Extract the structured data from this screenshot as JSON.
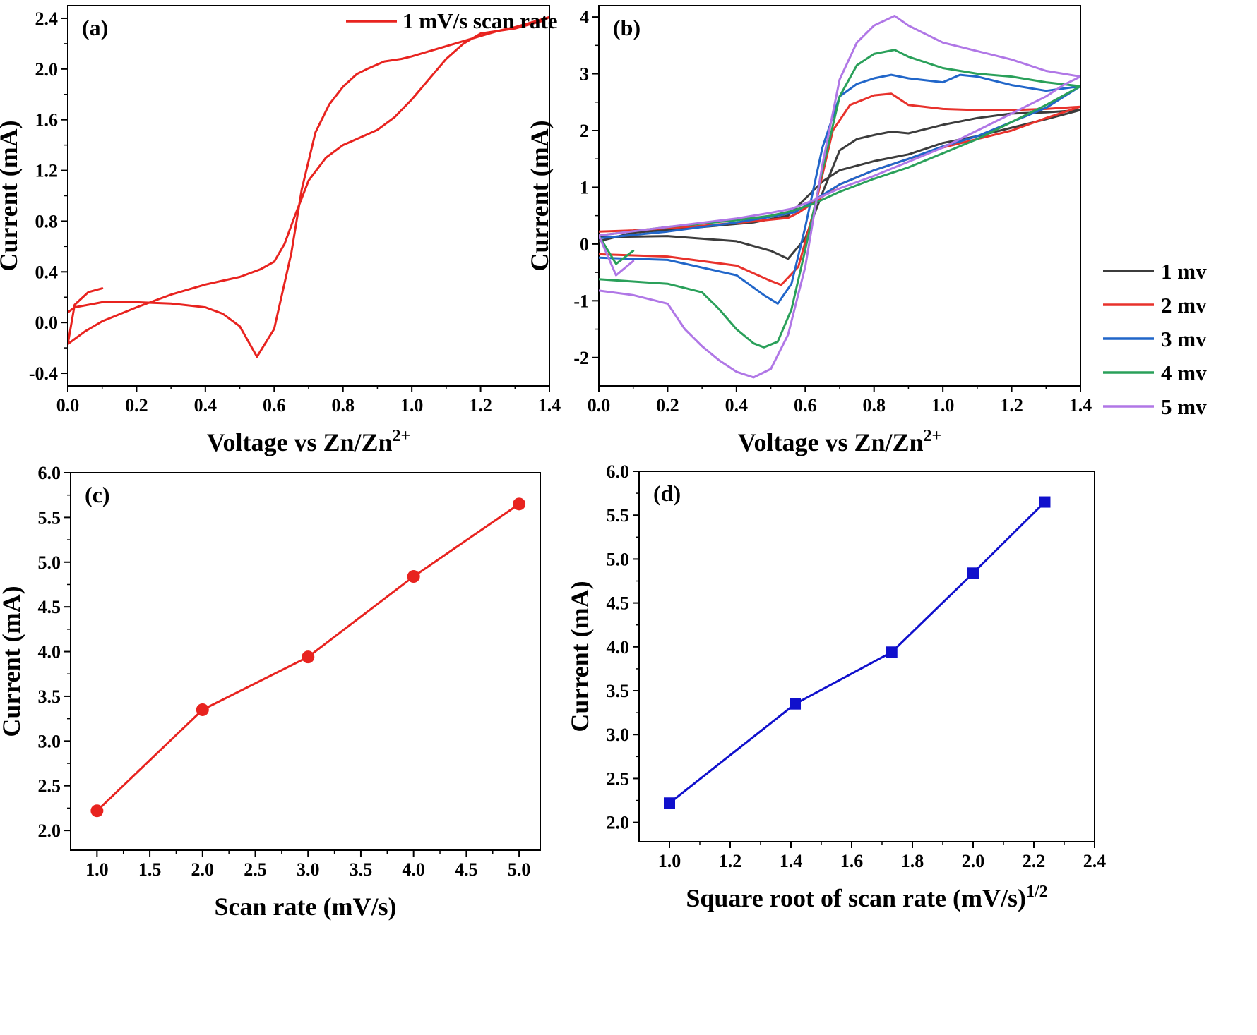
{
  "chart_data": [
    {
      "panel": "(a)",
      "type": "line",
      "xlabel": "Voltage vs Zn/Zn",
      "xlabel_sup": "2+",
      "ylabel": "Current (mA)",
      "xlim": [
        0,
        1.4
      ],
      "ylim": [
        -0.5,
        2.5
      ],
      "xticks": [
        "0.0",
        "0.2",
        "0.4",
        "0.6",
        "0.8",
        "1.0",
        "1.2",
        "1.4"
      ],
      "yticks": [
        "-0.4",
        "0.0",
        "0.4",
        "0.8",
        "1.2",
        "1.6",
        "2.0",
        "2.4"
      ],
      "legend": "top-right",
      "series": [
        {
          "name": "1 mV/s scan rate",
          "color": "#e8231f",
          "x": [
            0.0,
            0.02,
            0.1,
            0.2,
            0.3,
            0.4,
            0.45,
            0.5,
            0.55,
            0.6,
            0.65,
            0.68,
            0.72,
            0.76,
            0.8,
            0.84,
            0.87,
            0.92,
            0.97,
            1.0,
            1.05,
            1.1,
            1.15,
            1.2,
            1.25,
            1.3,
            1.35,
            1.4,
            1.38,
            1.3,
            1.25,
            1.2,
            1.15,
            1.1,
            1.05,
            1.0,
            0.95,
            0.9,
            0.85,
            0.8,
            0.75,
            0.7,
            0.66,
            0.63,
            0.6,
            0.56,
            0.52,
            0.5,
            0.45,
            0.4,
            0.3,
            0.2,
            0.1,
            0.05,
            0.0,
            0.02,
            0.06,
            0.1
          ],
          "y": [
            0.08,
            0.12,
            0.16,
            0.16,
            0.15,
            0.12,
            0.07,
            -0.03,
            -0.27,
            -0.05,
            0.55,
            1.05,
            1.5,
            1.72,
            1.86,
            1.96,
            2.0,
            2.06,
            2.08,
            2.1,
            2.14,
            2.18,
            2.22,
            2.26,
            2.3,
            2.33,
            2.37,
            2.41,
            2.38,
            2.32,
            2.3,
            2.28,
            2.2,
            2.08,
            1.92,
            1.76,
            1.62,
            1.52,
            1.46,
            1.4,
            1.3,
            1.12,
            0.84,
            0.62,
            0.48,
            0.42,
            0.38,
            0.36,
            0.33,
            0.3,
            0.22,
            0.12,
            0.01,
            -0.07,
            -0.17,
            0.14,
            0.24,
            0.27
          ]
        }
      ]
    },
    {
      "panel": "(b)",
      "type": "line",
      "xlabel": "Voltage vs Zn/Zn",
      "xlabel_sup": "2+",
      "ylabel": "Current (mA)",
      "xlim": [
        0,
        1.4
      ],
      "ylim": [
        -2.5,
        4.2
      ],
      "xticks": [
        "0.0",
        "0.2",
        "0.4",
        "0.6",
        "0.8",
        "1.0",
        "1.2",
        "1.4"
      ],
      "yticks": [
        "-2",
        "-1",
        "0",
        "1",
        "2",
        "3",
        "4"
      ],
      "legend": "bottom-right",
      "series": [
        {
          "name": "1 mv",
          "color": "#3c3c3c",
          "x": [
            0.0,
            0.2,
            0.4,
            0.5,
            0.55,
            0.6,
            0.65,
            0.7,
            0.75,
            0.8,
            0.85,
            0.9,
            1.0,
            1.1,
            1.2,
            1.3,
            1.4,
            1.3,
            1.2,
            1.1,
            1.0,
            0.9,
            0.8,
            0.7,
            0.65,
            0.6,
            0.55,
            0.45,
            0.3,
            0.1,
            0.0
          ],
          "y": [
            0.12,
            0.14,
            0.05,
            -0.12,
            -0.26,
            0.1,
            0.9,
            1.65,
            1.85,
            1.92,
            1.98,
            1.95,
            2.1,
            2.22,
            2.3,
            2.32,
            2.36,
            2.2,
            2.05,
            1.9,
            1.78,
            1.58,
            1.46,
            1.3,
            1.1,
            0.8,
            0.5,
            0.38,
            0.3,
            0.2,
            0.05
          ]
        },
        {
          "name": "2 mv",
          "color": "#e8322c",
          "x": [
            0.0,
            0.2,
            0.4,
            0.5,
            0.53,
            0.58,
            0.63,
            0.68,
            0.73,
            0.8,
            0.85,
            0.9,
            1.0,
            1.1,
            1.2,
            1.3,
            1.4,
            1.3,
            1.2,
            1.1,
            1.0,
            0.9,
            0.8,
            0.7,
            0.63,
            0.58,
            0.55,
            0.45,
            0.3,
            0.1,
            0.0
          ],
          "y": [
            -0.18,
            -0.22,
            -0.38,
            -0.65,
            -0.72,
            -0.4,
            0.7,
            2.0,
            2.45,
            2.62,
            2.65,
            2.45,
            2.38,
            2.36,
            2.36,
            2.38,
            2.42,
            2.22,
            2.0,
            1.85,
            1.7,
            1.5,
            1.3,
            1.05,
            0.75,
            0.55,
            0.46,
            0.4,
            0.32,
            0.24,
            0.22
          ]
        },
        {
          "name": "3 mv",
          "color": "#2166c9",
          "x": [
            0.0,
            0.2,
            0.4,
            0.48,
            0.52,
            0.56,
            0.6,
            0.65,
            0.7,
            0.75,
            0.8,
            0.85,
            0.9,
            1.0,
            1.05,
            1.1,
            1.2,
            1.3,
            1.4,
            1.3,
            1.2,
            1.1,
            1.0,
            0.9,
            0.8,
            0.7,
            0.62,
            0.57,
            0.5,
            0.4,
            0.2,
            0.0
          ],
          "y": [
            -0.24,
            -0.28,
            -0.55,
            -0.9,
            -1.05,
            -0.7,
            0.3,
            1.7,
            2.6,
            2.82,
            2.92,
            2.98,
            2.92,
            2.85,
            2.98,
            2.95,
            2.8,
            2.7,
            2.78,
            2.4,
            2.15,
            1.9,
            1.72,
            1.5,
            1.3,
            1.05,
            0.75,
            0.56,
            0.48,
            0.38,
            0.22,
            0.1
          ]
        },
        {
          "name": "4 mv",
          "color": "#2aa05a",
          "x": [
            0.0,
            0.2,
            0.3,
            0.35,
            0.4,
            0.45,
            0.48,
            0.52,
            0.56,
            0.6,
            0.65,
            0.7,
            0.75,
            0.8,
            0.86,
            0.9,
            1.0,
            1.1,
            1.2,
            1.3,
            1.4,
            1.3,
            1.2,
            1.1,
            1.0,
            0.9,
            0.8,
            0.7,
            0.62,
            0.56,
            0.5,
            0.4,
            0.2,
            0.0,
            0.05,
            0.1
          ],
          "y": [
            -0.62,
            -0.7,
            -0.85,
            -1.15,
            -1.5,
            -1.75,
            -1.82,
            -1.72,
            -1.15,
            -0.1,
            1.3,
            2.6,
            3.15,
            3.35,
            3.42,
            3.3,
            3.1,
            3.0,
            2.95,
            2.85,
            2.78,
            2.45,
            2.15,
            1.85,
            1.6,
            1.35,
            1.15,
            0.92,
            0.7,
            0.58,
            0.5,
            0.42,
            0.3,
            0.15,
            -0.35,
            -0.12
          ]
        },
        {
          "name": "5 mv",
          "color": "#b077e6",
          "x": [
            0.0,
            0.1,
            0.2,
            0.25,
            0.3,
            0.35,
            0.4,
            0.45,
            0.5,
            0.55,
            0.6,
            0.65,
            0.7,
            0.75,
            0.8,
            0.86,
            0.9,
            1.0,
            1.1,
            1.2,
            1.3,
            1.4,
            1.35,
            1.3,
            1.2,
            1.1,
            1.0,
            0.9,
            0.8,
            0.7,
            0.62,
            0.56,
            0.5,
            0.4,
            0.2,
            0.0,
            0.05,
            0.1
          ],
          "y": [
            -0.82,
            -0.9,
            -1.05,
            -1.5,
            -1.8,
            -2.05,
            -2.25,
            -2.35,
            -2.2,
            -1.6,
            -0.4,
            1.4,
            2.9,
            3.55,
            3.85,
            4.02,
            3.85,
            3.55,
            3.4,
            3.25,
            3.05,
            2.95,
            2.8,
            2.6,
            2.3,
            2.0,
            1.7,
            1.45,
            1.2,
            0.98,
            0.76,
            0.62,
            0.55,
            0.45,
            0.3,
            0.15,
            -0.55,
            -0.3
          ]
        }
      ]
    },
    {
      "panel": "(c)",
      "type": "line",
      "xlabel": "Scan rate (mV/s)",
      "ylabel": "Current (mA)",
      "xlim": [
        0.75,
        5.2
      ],
      "ylim": [
        1.78,
        6.0
      ],
      "xticks": [
        "1.0",
        "1.5",
        "2.0",
        "2.5",
        "3.0",
        "3.5",
        "4.0",
        "4.5",
        "5.0"
      ],
      "yticks": [
        "2.0",
        "2.5",
        "3.0",
        "3.5",
        "4.0",
        "4.5",
        "5.0",
        "5.5",
        "6.0"
      ],
      "series": [
        {
          "color": "#e8231f",
          "marker": "circle",
          "x": [
            1,
            2,
            3,
            4,
            5
          ],
          "y": [
            2.22,
            3.35,
            3.94,
            4.84,
            5.65
          ]
        }
      ]
    },
    {
      "panel": "(d)",
      "type": "line",
      "xlabel": "Square root of scan rate (mV/s)",
      "xlabel_sup": "1/2",
      "ylabel": "Current (mA)",
      "xlim": [
        0.9,
        2.4
      ],
      "ylim": [
        1.78,
        6.0
      ],
      "xticks": [
        "1.0",
        "1.2",
        "1.4",
        "1.6",
        "1.8",
        "2.0",
        "2.2",
        "2.4"
      ],
      "yticks": [
        "2.0",
        "2.5",
        "3.0",
        "3.5",
        "4.0",
        "4.5",
        "5.0",
        "5.5",
        "6.0"
      ],
      "series": [
        {
          "color": "#1010cc",
          "marker": "square",
          "x": [
            1.0,
            1.414,
            1.732,
            2.0,
            2.236
          ],
          "y": [
            2.22,
            3.35,
            3.94,
            4.84,
            5.65
          ]
        }
      ]
    }
  ]
}
